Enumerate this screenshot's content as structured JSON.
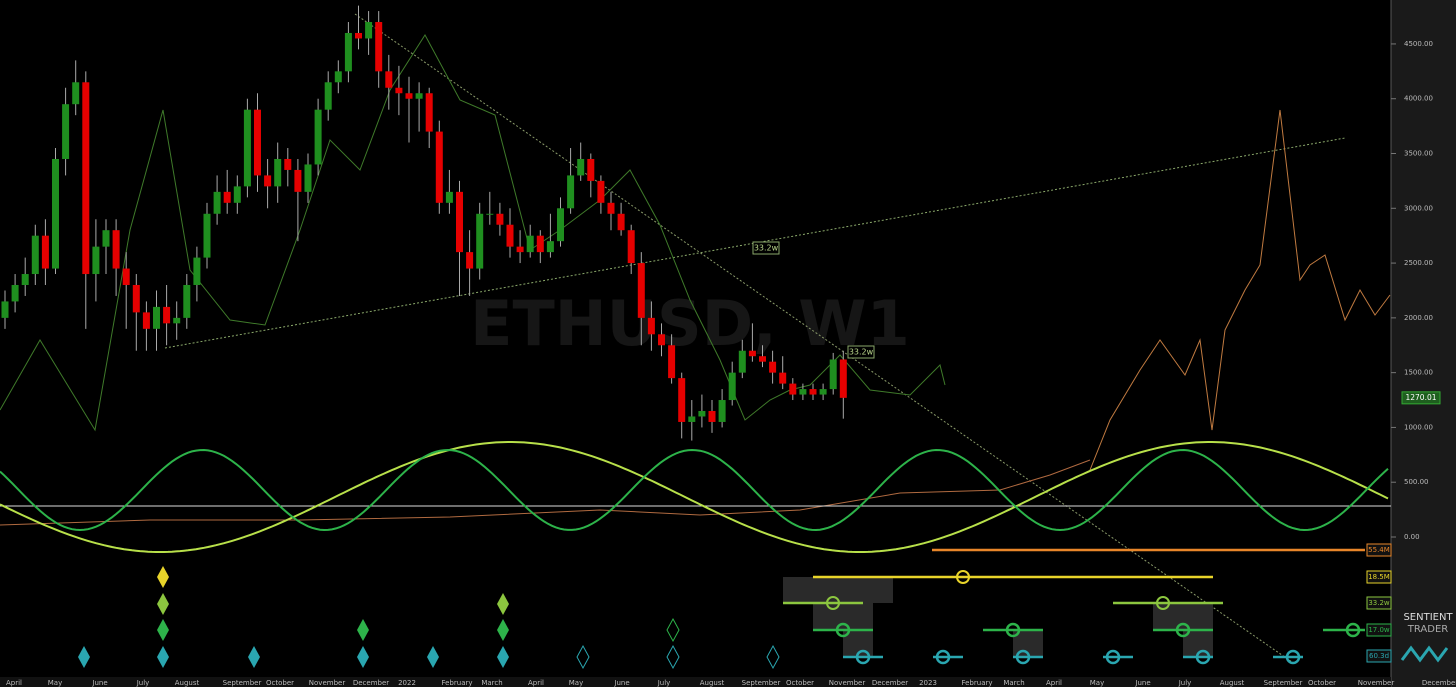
{
  "chart_data": {
    "type": "candlestick",
    "title": "ETHUSD, W1",
    "open": [
      2000,
      2150,
      2300,
      2400,
      2750,
      2450,
      3450,
      3950,
      4150,
      2400,
      2650,
      2800,
      2450,
      2300,
      2050,
      1900,
      2100,
      1950,
      2000,
      2300,
      2550,
      2950,
      3150,
      3050,
      3200,
      3900,
      3300,
      3200,
      3450,
      3350,
      3150,
      3400,
      3900,
      4150,
      4250,
      4600,
      4550,
      4700,
      4250,
      4100,
      4050,
      4000,
      4050,
      3700,
      3050,
      3150,
      2600,
      2450,
      2950,
      2950,
      2850,
      2650,
      2600,
      2750,
      2600,
      2700,
      3000,
      3300,
      3450,
      3250,
      3050,
      2950,
      2800,
      2500,
      2000,
      1850,
      1750,
      1450,
      1050,
      1100,
      1150,
      1050,
      1250,
      1500,
      1700,
      1650,
      1600,
      1500,
      1400,
      1300,
      1350,
      1300,
      1350,
      1620
    ],
    "high": [
      2250,
      2400,
      2550,
      2850,
      2900,
      3550,
      4100,
      4350,
      4250,
      2900,
      2900,
      2900,
      2600,
      2400,
      2150,
      2250,
      2300,
      2150,
      2400,
      2650,
      3050,
      3300,
      3350,
      3300,
      4000,
      4050,
      3450,
      3600,
      3550,
      3450,
      3500,
      4000,
      4250,
      4350,
      4700,
      4850,
      4800,
      4800,
      4400,
      4300,
      4200,
      4150,
      4100,
      3800,
      3350,
      3250,
      2800,
      3050,
      3150,
      3050,
      3000,
      2800,
      2850,
      2800,
      2950,
      3100,
      3550,
      3600,
      3500,
      3300,
      3150,
      3050,
      2850,
      2600,
      2150,
      1950,
      1850,
      1500,
      1250,
      1300,
      1250,
      1350,
      1600,
      1800,
      1950,
      1750,
      1700,
      1650,
      1450,
      1400,
      1400,
      1400,
      1680,
      1700
    ],
    "low": [
      1900,
      2050,
      2200,
      2300,
      2300,
      2400,
      3300,
      3850,
      1900,
      2150,
      2400,
      2200,
      1900,
      1700,
      1700,
      1700,
      1750,
      1800,
      1900,
      2150,
      2450,
      2850,
      2950,
      2950,
      3100,
      3150,
      3000,
      3050,
      3200,
      2700,
      3050,
      3300,
      3800,
      4050,
      4150,
      4450,
      4400,
      4100,
      3900,
      3850,
      3600,
      3700,
      3550,
      2950,
      2950,
      2200,
      2200,
      2350,
      2850,
      2750,
      2550,
      2500,
      2550,
      2500,
      2550,
      2650,
      2950,
      3250,
      3100,
      2950,
      2800,
      2750,
      2400,
      1750,
      1700,
      1650,
      1400,
      900,
      880,
      1000,
      950,
      1000,
      1200,
      1450,
      1600,
      1550,
      1400,
      1350,
      1250,
      1250,
      1250,
      1250,
      1300,
      1080
    ],
    "close": [
      2150,
      2300,
      2400,
      2750,
      2450,
      3450,
      3950,
      4150,
      2400,
      2650,
      2800,
      2450,
      2300,
      2050,
      1900,
      2100,
      1950,
      2000,
      2300,
      2550,
      2950,
      3150,
      3050,
      3200,
      3900,
      3300,
      3200,
      3450,
      3350,
      3150,
      3400,
      3900,
      4150,
      4250,
      4600,
      4550,
      4700,
      4250,
      4100,
      4050,
      4000,
      4050,
      3700,
      3050,
      3150,
      2600,
      2450,
      2950,
      2950,
      2850,
      2650,
      2600,
      2750,
      2600,
      2700,
      3000,
      3300,
      3450,
      3250,
      3050,
      2950,
      2800,
      2500,
      2000,
      1850,
      1750,
      1450,
      1050,
      1100,
      1150,
      1050,
      1250,
      1500,
      1700,
      1650,
      1600,
      1500,
      1400,
      1300,
      1350,
      1300,
      1350,
      1620,
      1270
    ],
    "up_color": "#1f8f1f",
    "down_color": "#e60000",
    "x_labels": [
      "April",
      "May",
      "June",
      "July",
      "August",
      "September",
      "October",
      "November",
      "December",
      "2022",
      "February",
      "March",
      "April",
      "May",
      "June",
      "July",
      "August",
      "September",
      "October",
      "November",
      "December",
      "2023",
      "February",
      "March",
      "April",
      "May",
      "June",
      "July",
      "August",
      "September",
      "October",
      "November",
      "December"
    ],
    "ylim": [
      -1369,
      4901
    ],
    "yticks": [
      {
        "value": 0,
        "label": "0.00"
      },
      {
        "value": 500,
        "label": "500.00"
      },
      {
        "value": 1000,
        "label": "1000.00"
      },
      {
        "value": 1500,
        "label": "1500.00"
      },
      {
        "value": 2000,
        "label": "2000.00"
      },
      {
        "value": 2500,
        "label": "2500.00"
      },
      {
        "value": 3000,
        "label": "3000.00"
      },
      {
        "value": 3500,
        "label": "3500.00"
      },
      {
        "value": 4000,
        "label": "4000.00"
      },
      {
        "value": 4500,
        "label": "4500.00"
      }
    ],
    "last_price": {
      "value": 1270.01,
      "label": "1270.01"
    },
    "annotations": [
      "33.2w",
      "33.2w"
    ],
    "cycles": [
      {
        "name": "55.4M",
        "color": "#e8862a"
      },
      {
        "name": "18.5M",
        "color": "#e8d42a"
      },
      {
        "name": "33.2w",
        "color": "#8cc63f"
      },
      {
        "name": "17.0w",
        "color": "#2db34a"
      },
      {
        "name": "60.3d",
        "color": "#2aa6b0"
      }
    ],
    "brand": [
      "SENTIENT",
      "TRADER"
    ]
  }
}
